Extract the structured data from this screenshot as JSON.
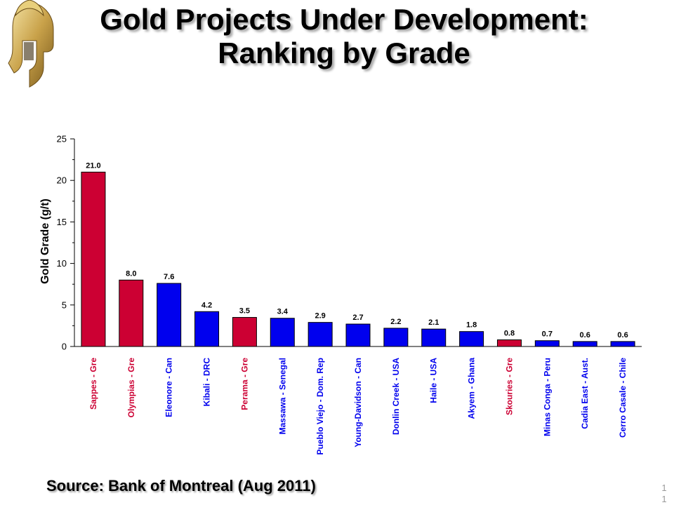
{
  "title": {
    "line1": "Gold Projects Under Development:",
    "line2": "Ranking by Grade"
  },
  "source": "Source: Bank of Montreal (Aug 2011)",
  "page_number": "1 1",
  "logo": {
    "icon": "spartan-helmet-icon"
  },
  "colors": {
    "highlight": "#cc0033",
    "default": "#0000ee",
    "axis": "#000000"
  },
  "chart_data": {
    "type": "bar",
    "title": "",
    "xlabel": "",
    "ylabel": "Gold Grade (g/t)",
    "ylim": [
      0,
      25
    ],
    "yticks": [
      0,
      5,
      10,
      15,
      20,
      25
    ],
    "grid": false,
    "legend": "none",
    "categories": [
      "Sappes - Gre",
      "Olympias - Gre",
      "Eleonore - Can",
      "Kibali - DRC",
      "Perama - Gre",
      "Massawa - Senegal",
      "Pueblo Viejo - Dom. Rep",
      "Young-Davidson - Can",
      "Donlin Creek - USA",
      "Haile - USA",
      "Akyem - Ghana",
      "Skouries - Gre",
      "Minas Conga - Peru",
      "Cadia East - Aust.",
      "Cerro Casale - Chile"
    ],
    "values": [
      21.0,
      8.0,
      7.6,
      4.2,
      3.5,
      3.4,
      2.9,
      2.7,
      2.2,
      2.1,
      1.8,
      0.8,
      0.7,
      0.6,
      0.6
    ],
    "value_labels": [
      "21.0",
      "8.0",
      "7.6",
      "4.2",
      "3.5",
      "3.4",
      "2.9",
      "2.7",
      "2.2",
      "2.1",
      "1.8",
      "0.8",
      "0.7",
      "0.6",
      "0.6"
    ],
    "highlighted": [
      true,
      true,
      false,
      false,
      true,
      false,
      false,
      false,
      false,
      false,
      false,
      true,
      false,
      false,
      false
    ]
  }
}
